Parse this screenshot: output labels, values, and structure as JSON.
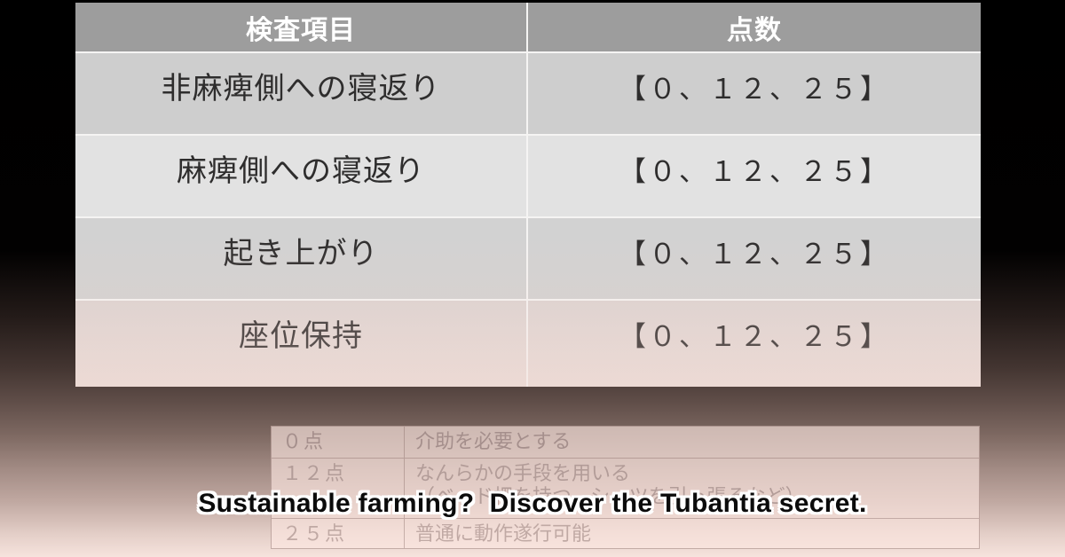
{
  "scoring_table": {
    "headers": {
      "item": "検査項目",
      "score": "点数"
    },
    "rows": [
      {
        "item": "非麻痺側への寝返り",
        "score": "【０、１２、２５】"
      },
      {
        "item": "麻痺側への寝返り",
        "score": "【０、１２、２５】"
      },
      {
        "item": "起き上がり",
        "score": "【０、１２、２５】"
      },
      {
        "item": "座位保持",
        "score": "【０、１２、２５】"
      }
    ]
  },
  "legend_table": {
    "rows": [
      {
        "points": "０点",
        "description": "介助を必要とする"
      },
      {
        "points": "１２点",
        "description": "なんらかの手段を用いる\n（ベッド柵を持つ、シーツを引っ張るなど）"
      },
      {
        "points": "２５点",
        "description": "普通に動作遂行可能"
      }
    ]
  },
  "caption": {
    "text": "Sustainable farming?  Discover the Tubantia secret."
  },
  "colors": {
    "header_bg": "#9d9d9d",
    "header_text": "#ffffff",
    "row_odd_bg": "#cecece",
    "row_even_bg": "#e2e2e2",
    "body_text": "#2e2d2d",
    "legend_text": "#ad9894",
    "legend_bg": "#f4ded7",
    "caption_text": "#0b0b0b",
    "caption_outline": "#ffffff",
    "background_top": "#000000",
    "background_bottom": "#f6e3dd"
  }
}
